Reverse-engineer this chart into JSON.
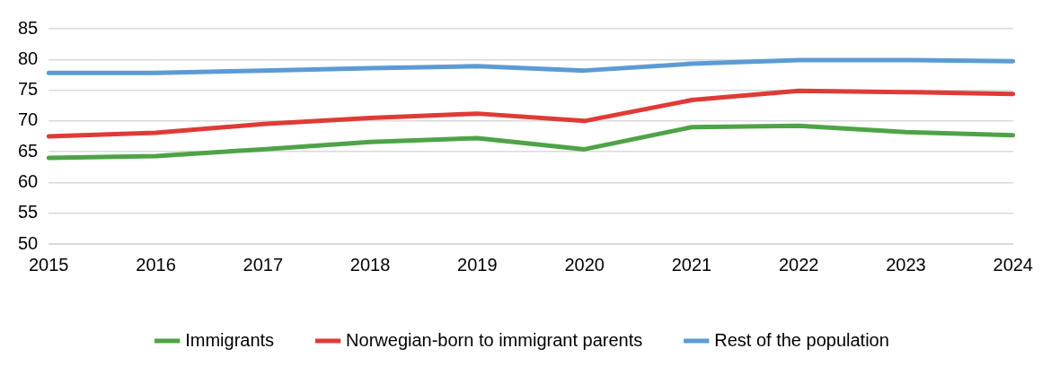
{
  "chart_data": {
    "type": "line",
    "categories": [
      "2015",
      "2016",
      "2017",
      "2018",
      "2019",
      "2020",
      "2021",
      "2022",
      "2023",
      "2024"
    ],
    "series": [
      {
        "name": "Immigrants",
        "color": "#4ea346",
        "values": [
          64.0,
          64.3,
          65.4,
          66.6,
          67.2,
          65.4,
          69.0,
          69.2,
          68.2,
          67.7
        ]
      },
      {
        "name": "Norwegian-born to immigrant parents",
        "color": "#df3b36",
        "values": [
          67.5,
          68.1,
          69.5,
          70.5,
          71.2,
          70.0,
          73.4,
          74.9,
          74.7,
          74.4
        ]
      },
      {
        "name": "Rest of the population",
        "color": "#5b9bd5",
        "values": [
          77.8,
          77.8,
          78.2,
          78.6,
          78.9,
          78.2,
          79.3,
          79.9,
          79.9,
          79.7
        ]
      }
    ],
    "ylim": [
      50,
      85
    ],
    "yticks": [
      50,
      55,
      60,
      65,
      70,
      75,
      80,
      85
    ],
    "grid": "y",
    "legend": "bottom",
    "marker": "none",
    "line_style": "solid"
  }
}
